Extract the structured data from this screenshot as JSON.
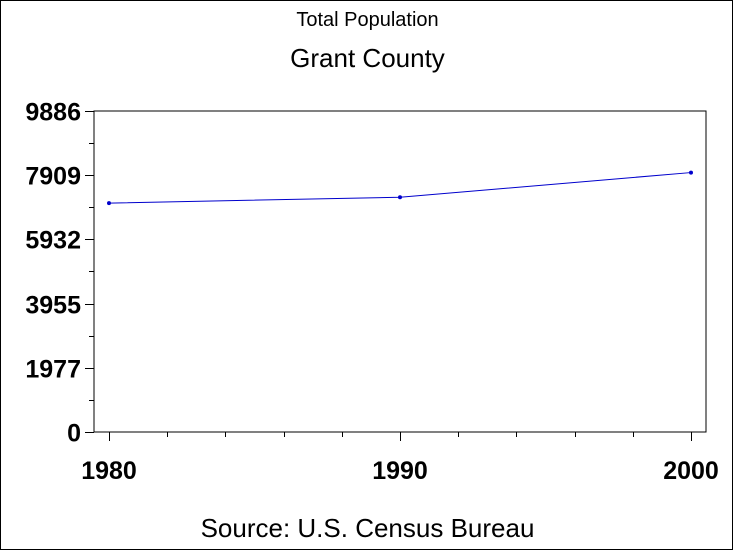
{
  "chart_data": {
    "type": "line",
    "supertitle": "Total Population",
    "title": "Grant County",
    "source": "Source: U.S. Census Bureau",
    "x": [
      1980,
      1990,
      2000
    ],
    "x_tick_labels": [
      "1980",
      "1990",
      "2000"
    ],
    "y_tick_values": [
      0,
      1977,
      3955,
      5932,
      7909,
      9886
    ],
    "y_tick_labels": [
      "0",
      "1977",
      "3955",
      "5932",
      "7909",
      "9886"
    ],
    "ylim": [
      0,
      9886
    ],
    "xlim": [
      1980,
      2000
    ],
    "grid": false,
    "series": [
      {
        "values": [
          7050,
          7230,
          7990
        ],
        "color": "#0000cc"
      }
    ]
  }
}
